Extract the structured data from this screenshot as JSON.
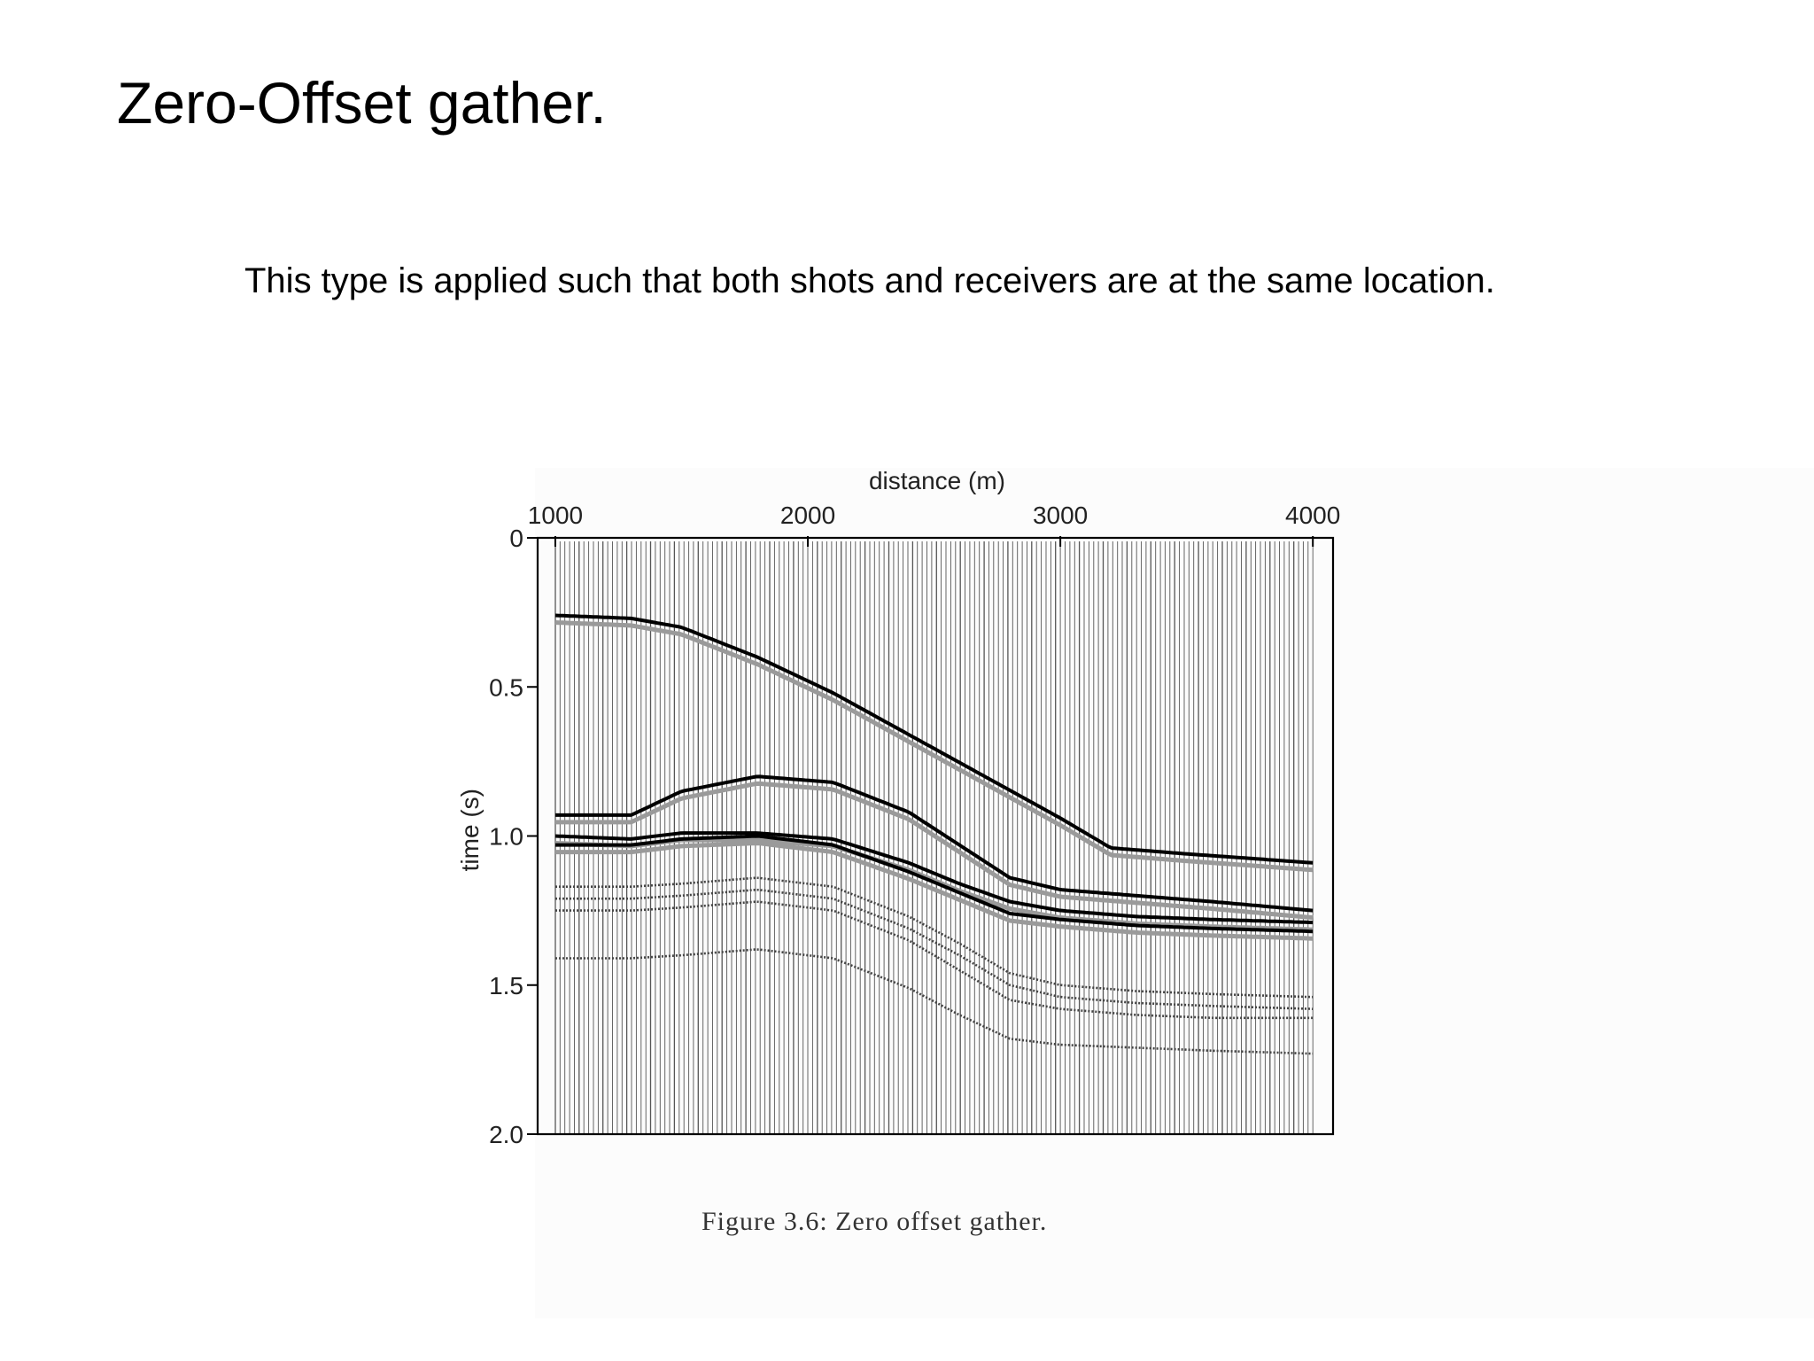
{
  "slide": {
    "title": "Zero-Offset gather.",
    "body": "This type is applied such that both shots and receivers are at the same location."
  },
  "chart_data": {
    "type": "line",
    "subtype": "seismic-wiggle-gather",
    "xlabel": "distance (m)",
    "ylabel": "time (s)",
    "x_axis_position": "top",
    "y_axis_inverted": true,
    "xlim": [
      930,
      4080
    ],
    "ylim": [
      0,
      2.0
    ],
    "x_ticks": [
      "1000",
      "2000",
      "3000",
      "4000"
    ],
    "x_tick_values": [
      1000,
      2000,
      3000,
      4000
    ],
    "y_ticks": [
      "0",
      "0.5",
      "1.0",
      "1.5",
      "2.0"
    ],
    "y_tick_values": [
      0,
      0.5,
      1.0,
      1.5,
      2.0
    ],
    "trace_range": [
      1000,
      4000
    ],
    "trace_count": 160,
    "caption": "Figure 3.6: Zero offset gather.",
    "colors": {
      "trace": "#555555",
      "strong_event": "#000000",
      "weak_event": "#444444"
    },
    "series": [
      {
        "strength": "strong",
        "x": [
          1000,
          1300,
          1500,
          1800,
          2100,
          2400,
          2700,
          3000,
          3200,
          3500,
          4000
        ],
        "y": [
          0.26,
          0.27,
          0.3,
          0.4,
          0.52,
          0.66,
          0.8,
          0.94,
          1.04,
          1.06,
          1.09
        ]
      },
      {
        "strength": "strong",
        "x": [
          1000,
          1150,
          1300,
          1500,
          1800,
          2100,
          2400,
          2600,
          2800,
          3000,
          3300,
          3600,
          4000
        ],
        "y": [
          0.93,
          0.93,
          0.93,
          0.85,
          0.8,
          0.82,
          0.92,
          1.03,
          1.14,
          1.18,
          1.2,
          1.22,
          1.25
        ]
      },
      {
        "strength": "strong",
        "x": [
          1000,
          1300,
          1500,
          1800,
          2100,
          2400,
          2600,
          2800,
          3000,
          3300,
          3600,
          4000
        ],
        "y": [
          1.0,
          1.01,
          0.99,
          0.99,
          1.01,
          1.09,
          1.16,
          1.22,
          1.25,
          1.27,
          1.28,
          1.29
        ]
      },
      {
        "strength": "strong",
        "x": [
          1000,
          1300,
          1500,
          1800,
          2100,
          2400,
          2600,
          2800,
          3000,
          3300,
          3600,
          4000
        ],
        "y": [
          1.03,
          1.03,
          1.01,
          1.0,
          1.03,
          1.12,
          1.19,
          1.26,
          1.28,
          1.3,
          1.31,
          1.32
        ]
      },
      {
        "strength": "weak",
        "x": [
          1000,
          1300,
          1500,
          1800,
          2100,
          2400,
          2600,
          2800,
          3000,
          3300,
          3600,
          4000
        ],
        "y": [
          1.17,
          1.17,
          1.16,
          1.14,
          1.17,
          1.27,
          1.36,
          1.46,
          1.5,
          1.52,
          1.53,
          1.54
        ]
      },
      {
        "strength": "weak",
        "x": [
          1000,
          1300,
          1500,
          1800,
          2100,
          2400,
          2600,
          2800,
          3000,
          3300,
          3600,
          4000
        ],
        "y": [
          1.21,
          1.21,
          1.2,
          1.18,
          1.21,
          1.31,
          1.4,
          1.5,
          1.54,
          1.56,
          1.57,
          1.58
        ]
      },
      {
        "strength": "weak",
        "x": [
          1000,
          1300,
          1500,
          1800,
          2100,
          2400,
          2600,
          2800,
          3000,
          3300,
          3600,
          4000
        ],
        "y": [
          1.25,
          1.25,
          1.24,
          1.22,
          1.25,
          1.35,
          1.45,
          1.55,
          1.58,
          1.6,
          1.61,
          1.61
        ]
      },
      {
        "strength": "weak",
        "x": [
          1000,
          1300,
          1500,
          1800,
          2100,
          2400,
          2600,
          2800,
          3000,
          3300,
          3600,
          4000
        ],
        "y": [
          1.41,
          1.41,
          1.4,
          1.38,
          1.41,
          1.51,
          1.6,
          1.68,
          1.7,
          1.71,
          1.72,
          1.73
        ]
      }
    ]
  }
}
